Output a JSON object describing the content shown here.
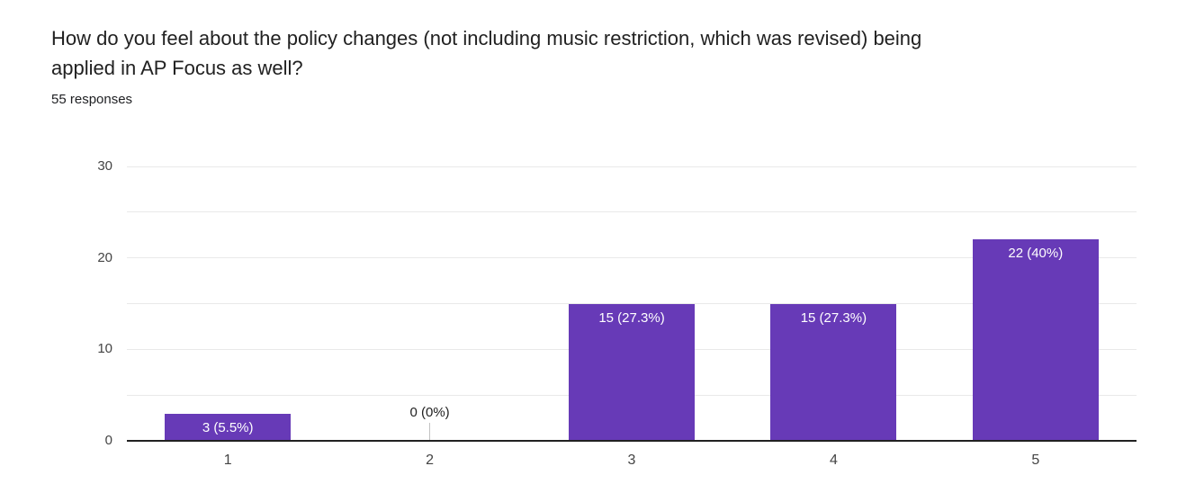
{
  "header": {
    "title_lines": [
      "How do you feel about the policy changes (not including music restriction, which was revised) being",
      "applied in AP Focus as well?"
    ],
    "responses": "55 responses"
  },
  "chart_data": {
    "type": "bar",
    "categories": [
      "1",
      "2",
      "3",
      "4",
      "5"
    ],
    "values": [
      3,
      0,
      15,
      15,
      22
    ],
    "bar_labels": [
      "3 (5.5%)",
      "0 (0%)",
      "15 (27.3%)",
      "15 (27.3%)",
      "22 (40%)"
    ],
    "title": "",
    "xlabel": "",
    "ylabel": "",
    "ylim": [
      0,
      30
    ],
    "yticks": [
      0,
      10,
      20,
      30
    ],
    "gridline_step": 5,
    "grid": true,
    "legend": "none",
    "bar_color": "#673ab7",
    "bar_label_color": "#ffffff",
    "zero_label_color": "#212121",
    "gridline_color": "#e9e9e9",
    "axis_line_color": "#212121",
    "tick_label_color": "#444444"
  }
}
